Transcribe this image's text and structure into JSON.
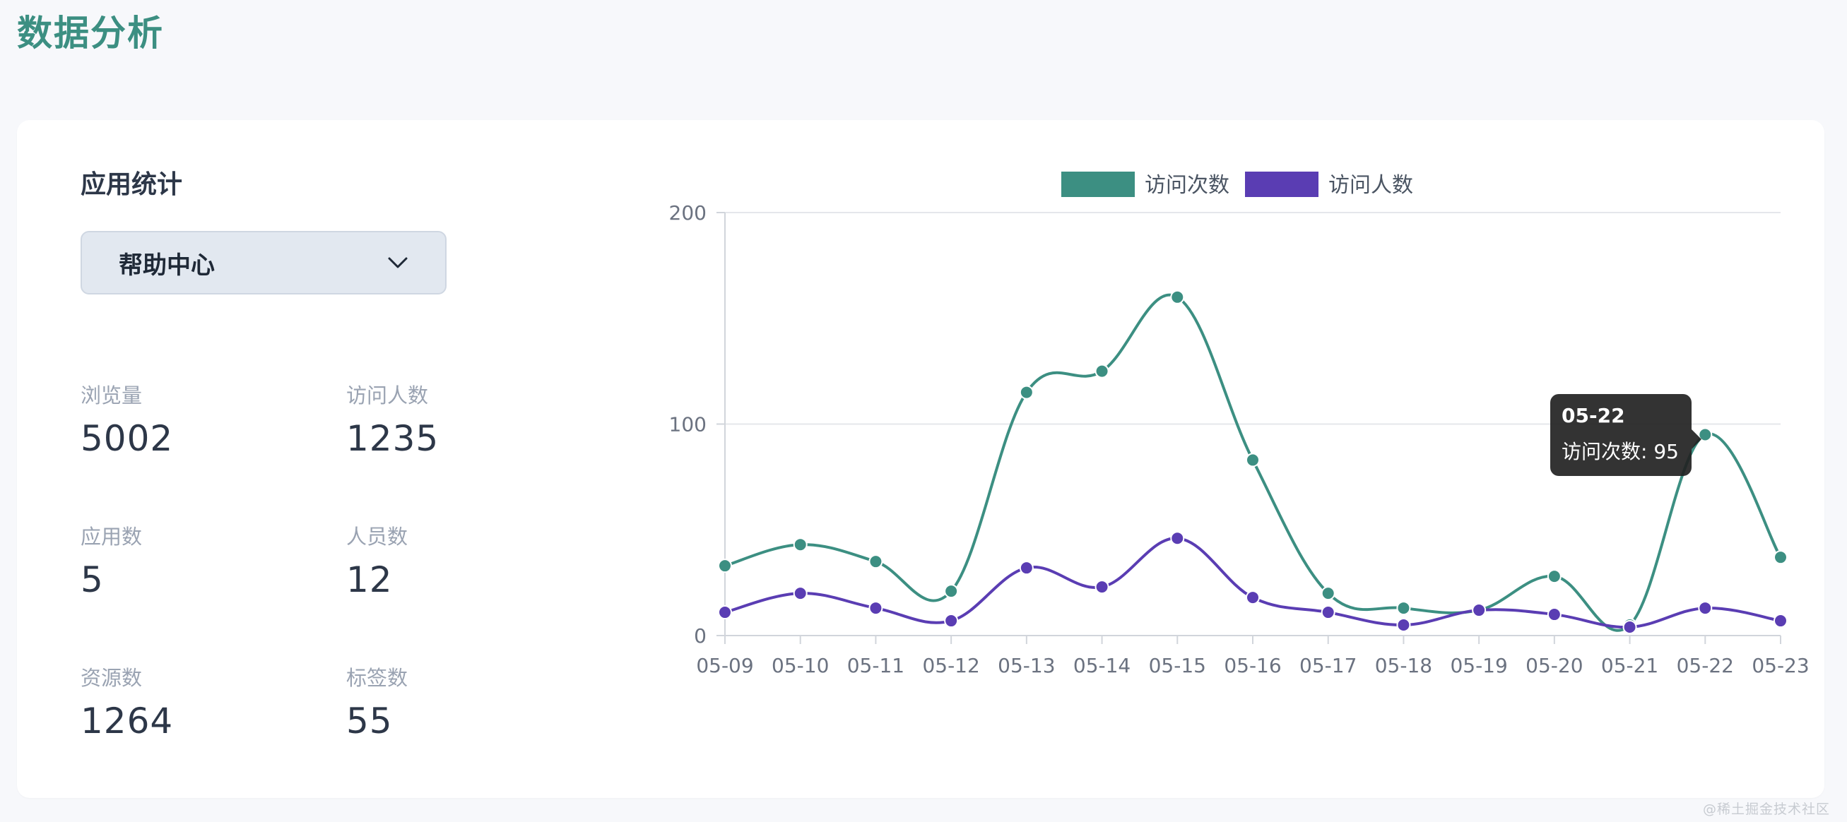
{
  "page_title": "数据分析",
  "app_stats": {
    "title": "应用统计",
    "selected_app": "帮助中心",
    "stats": [
      {
        "label": "浏览量",
        "value": "5002"
      },
      {
        "label": "访问人数",
        "value": "1235"
      },
      {
        "label": "应用数",
        "value": "5"
      },
      {
        "label": "人员数",
        "value": "12"
      },
      {
        "label": "资源数",
        "value": "1264"
      },
      {
        "label": "标签数",
        "value": "55"
      }
    ]
  },
  "tooltip": {
    "date": "05-22",
    "text": "访问次数: 95"
  },
  "watermark": "@稀土掘金技术社区",
  "colors": {
    "accent": "#3c8f82",
    "series_visits": "#3c8f82",
    "series_visitors": "#5a3db3"
  },
  "chart_data": {
    "type": "line",
    "x": [
      "05-09",
      "05-10",
      "05-11",
      "05-12",
      "05-13",
      "05-14",
      "05-15",
      "05-16",
      "05-17",
      "05-18",
      "05-19",
      "05-20",
      "05-21",
      "05-22",
      "05-23"
    ],
    "series": [
      {
        "name": "访问次数",
        "values": [
          33,
          43,
          35,
          21,
          115,
          125,
          160,
          83,
          20,
          13,
          12,
          28,
          5,
          95,
          37
        ],
        "color": "#3c8f82"
      },
      {
        "name": "访问人数",
        "values": [
          11,
          20,
          13,
          7,
          32,
          23,
          46,
          18,
          11,
          5,
          12,
          10,
          4,
          13,
          7
        ],
        "color": "#5a3db3"
      }
    ],
    "yticks": [
      "0",
      "100",
      "200"
    ],
    "ylim": [
      0,
      200
    ],
    "grid": true,
    "legend_position": "top",
    "title": "",
    "xlabel": "",
    "ylabel": ""
  }
}
